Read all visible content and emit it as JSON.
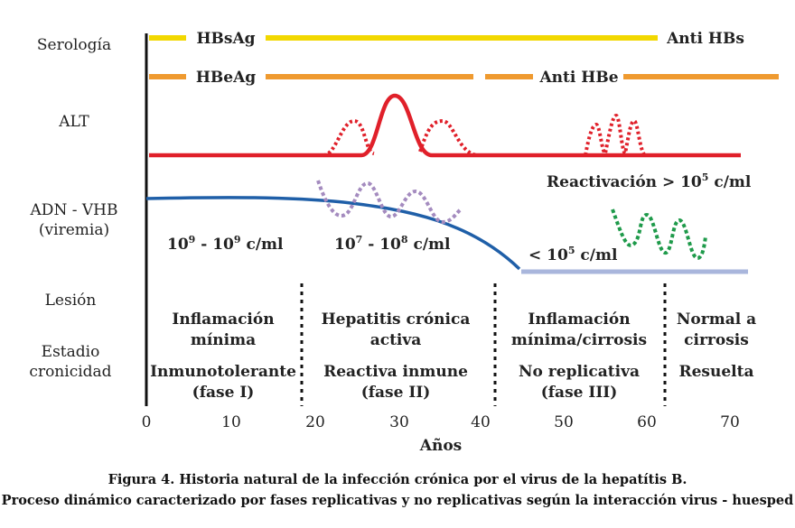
{
  "row_labels": {
    "serologia": "Serología",
    "alt": "ALT",
    "adn": "ADN - VHB",
    "viremia": "(viremia)",
    "lesion": "Lesión",
    "estadio_1": "Estadio",
    "estadio_2": "cronicidad"
  },
  "markers": {
    "hbsag": "HBsAg",
    "anti_hbs": "Anti HBs",
    "hbeag": "HBeAg",
    "anti_hbe": "Anti HBe"
  },
  "annotations": {
    "reactivacion": "Reactivación > 10",
    "reactivacion_sup": "5",
    "reactivacion_unit": " c/ml",
    "v1_base": "10",
    "v1_sup1": "9",
    "v1_mid": " - 10",
    "v1_sup2": "9",
    "v1_unit": " c/ml",
    "v2_base": "10",
    "v2_sup1": "7",
    "v2_mid": " - 10",
    "v2_sup2": "8",
    "v2_unit": " c/ml",
    "v3_base": "< 10",
    "v3_sup": "5",
    "v3_unit": " c/ml"
  },
  "phases": [
    {
      "lesion_1": "Inflamación",
      "lesion_2": "mínima",
      "stage_1": "Inmunotolerante",
      "stage_2": "(fase I)"
    },
    {
      "lesion_1": "Hepatitis crónica",
      "lesion_2": "activa",
      "stage_1": "Reactiva inmune",
      "stage_2": "(fase II)"
    },
    {
      "lesion_1": "Inflamación",
      "lesion_2": "mínima/cirrosis",
      "stage_1": "No replicativa",
      "stage_2": "(fase III)"
    },
    {
      "lesion_1": "Normal a",
      "lesion_2": "cirrosis",
      "stage_1": "Resuelta",
      "stage_2": ""
    }
  ],
  "axis": {
    "ticks": [
      "0",
      "10",
      "20",
      "30",
      "40",
      "50",
      "60",
      "70"
    ],
    "label": "Años"
  },
  "caption": {
    "line1": "Figura 4. Historia natural  de la infección crónica por el virus de la hepatítis B.",
    "line2": "Proceso dinámico caracterizado por fases replicativas y no replicativas según la interacción virus - huesped"
  },
  "colors": {
    "hbs": "#f2d800",
    "hbe": "#ef9a2f",
    "alt": "#e0202a",
    "dna": "#1f5fa8",
    "dna_low": "#a9b6dc",
    "flare_purple": "#a48bbf",
    "flare_green": "#1e9a4a"
  }
}
